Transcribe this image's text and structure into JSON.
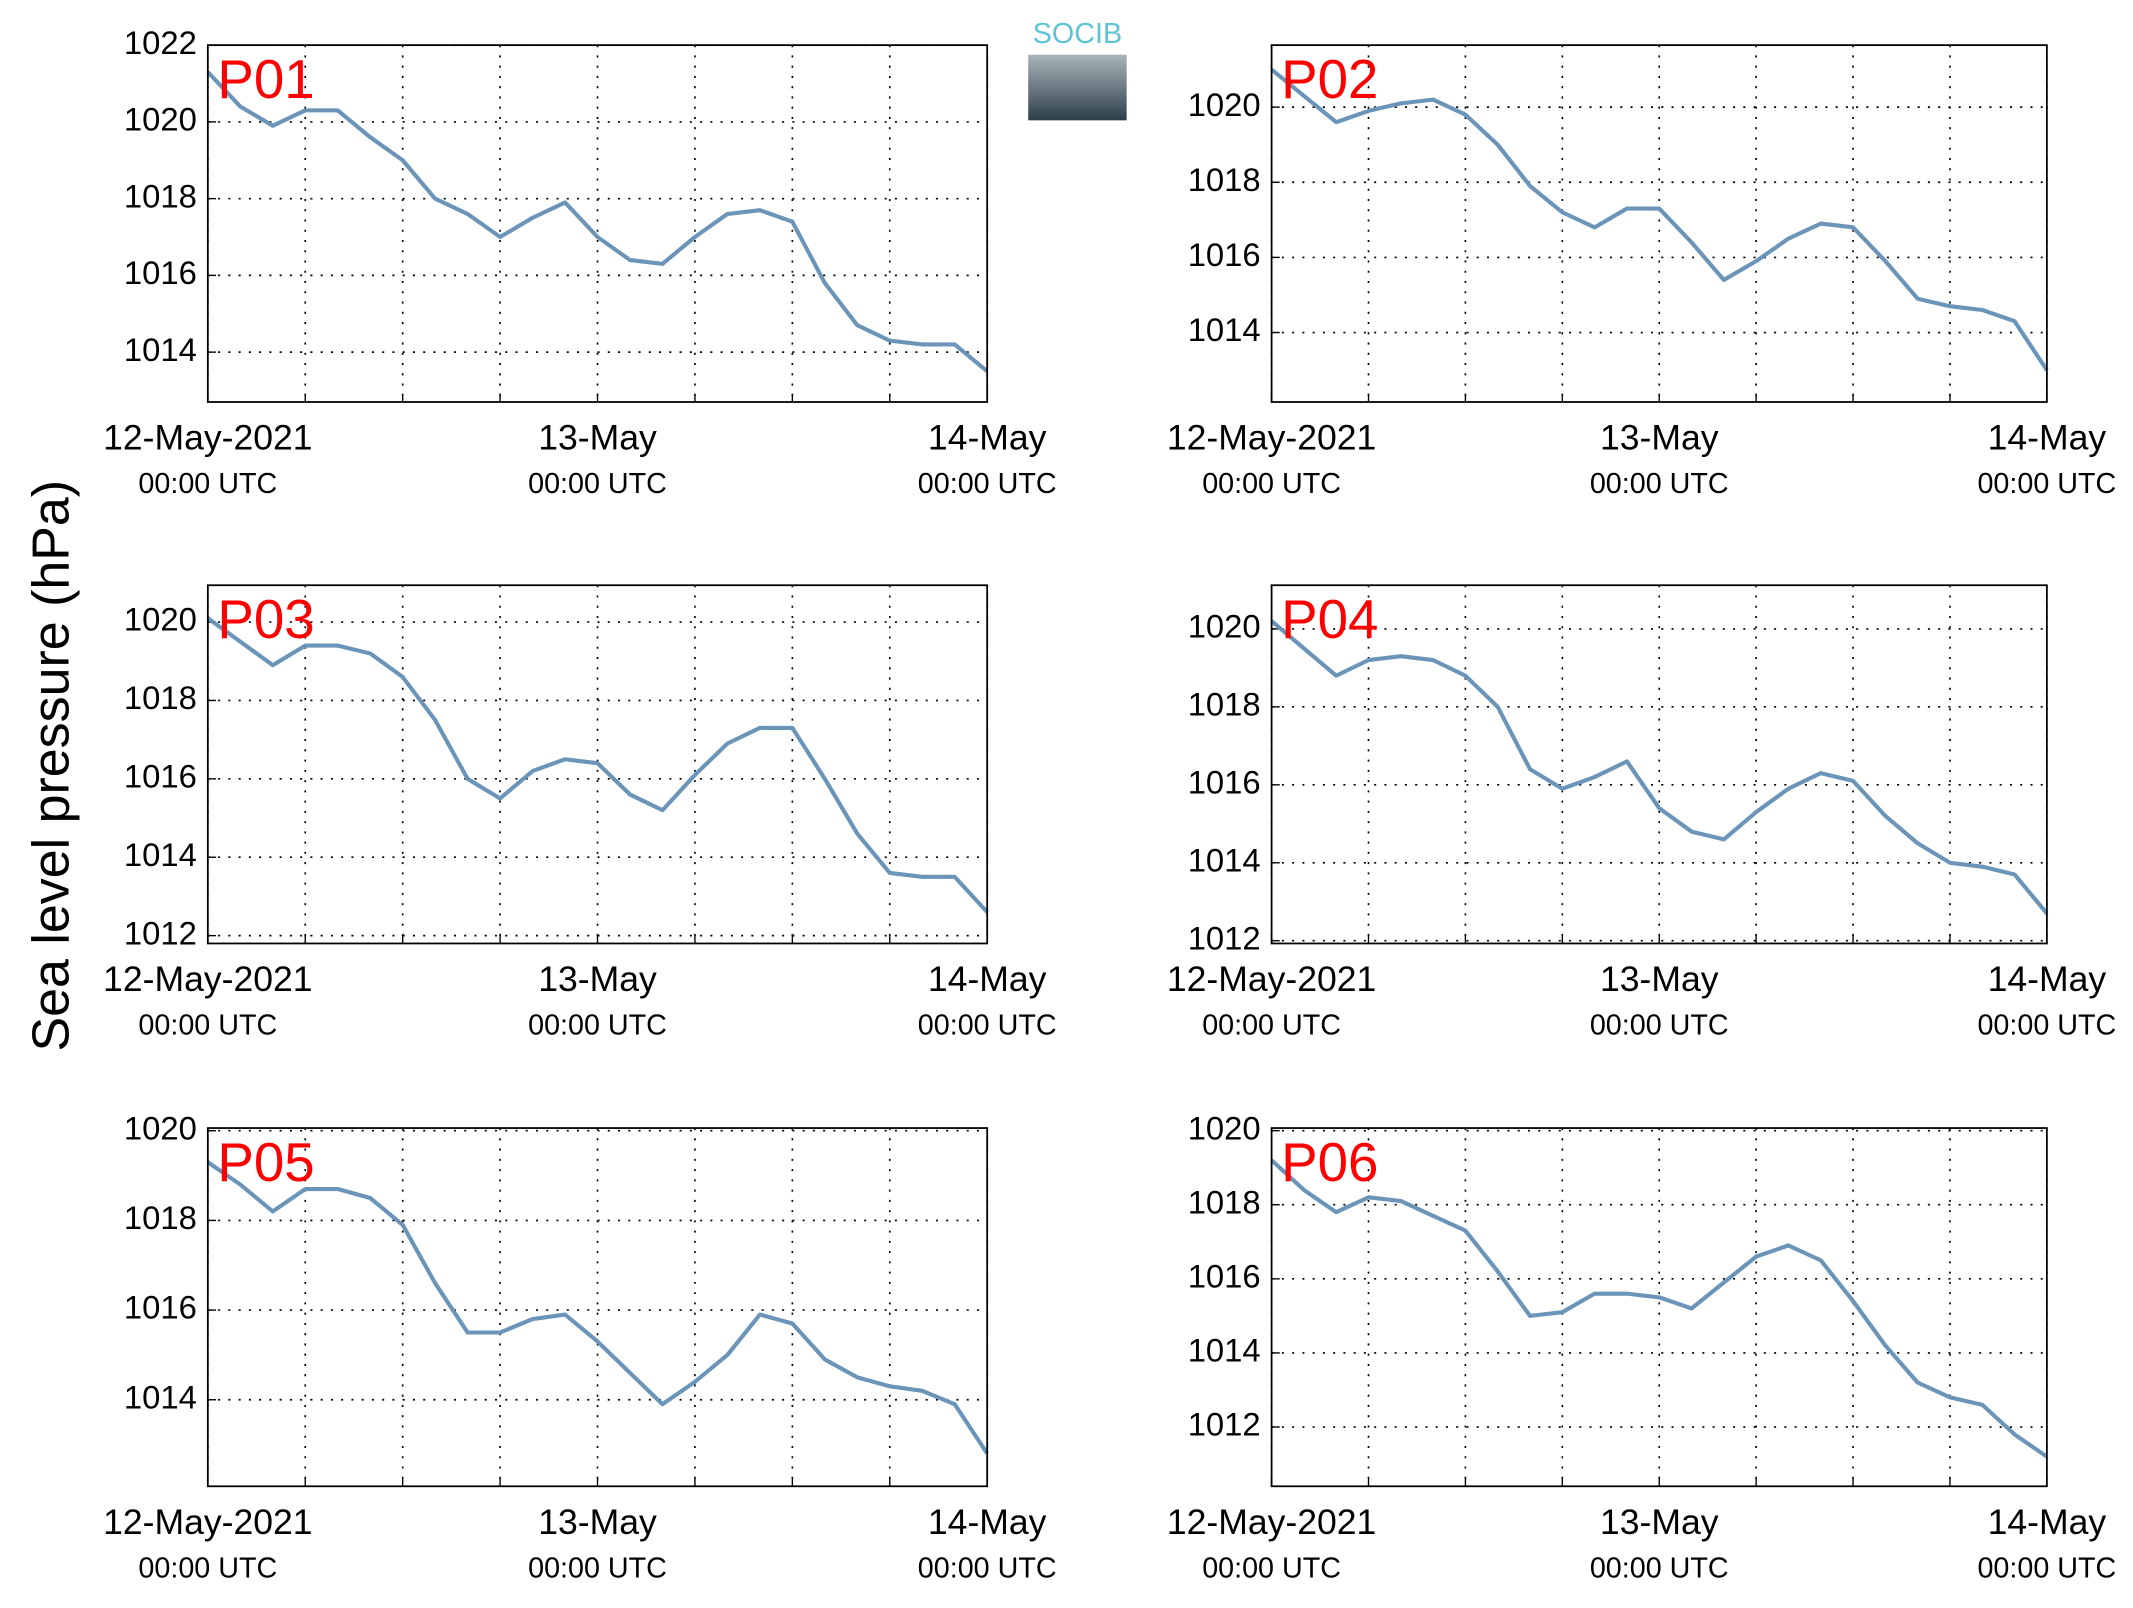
{
  "ylabel": "Sea level pressure (hPa)",
  "logo": "SOCIB",
  "chart_data": [
    {
      "type": "line",
      "title": "P01",
      "color": "#6b94b9",
      "xlim": [
        0,
        48
      ],
      "ylim": [
        1012.7,
        1022
      ],
      "x": [
        0,
        2,
        4,
        6,
        8,
        10,
        12,
        14,
        16,
        18,
        20,
        22,
        24,
        26,
        28,
        30,
        32,
        34,
        36,
        38,
        40,
        42,
        44,
        46,
        48
      ],
      "values": [
        1021.3,
        1020.4,
        1019.9,
        1020.3,
        1020.3,
        1019.6,
        1019.0,
        1018.0,
        1017.6,
        1017.0,
        1017.5,
        1017.9,
        1017.0,
        1016.4,
        1016.3,
        1017.0,
        1017.6,
        1017.7,
        1017.4,
        1015.8,
        1014.7,
        1014.3,
        1014.2,
        1014.2,
        1013.5
      ],
      "yticks": [
        1014,
        1016,
        1018,
        1020,
        1022
      ],
      "xticks": [
        {
          "value": 0,
          "label": "12-May-2021"
        },
        {
          "value": 24,
          "label": "13-May"
        },
        {
          "value": 48,
          "label": "14-May"
        }
      ],
      "xtick_sublabels": [
        "00:00 UTC",
        "00:00 UTC",
        "00:00 UTC"
      ],
      "xgrid": [
        0,
        6,
        12,
        18,
        24,
        30,
        36,
        42,
        48
      ],
      "grid": true
    },
    {
      "type": "line",
      "title": "P02",
      "color": "#6b94b9",
      "xlim": [
        0,
        48
      ],
      "ylim": [
        1012.15,
        1021.65
      ],
      "x": [
        0,
        2,
        4,
        6,
        8,
        10,
        12,
        14,
        16,
        18,
        20,
        22,
        24,
        26,
        28,
        30,
        32,
        34,
        36,
        38,
        40,
        42,
        44,
        46,
        48
      ],
      "values": [
        1021.0,
        1020.3,
        1019.6,
        1019.9,
        1020.1,
        1020.2,
        1019.8,
        1019.0,
        1017.9,
        1017.2,
        1016.8,
        1017.3,
        1017.3,
        1016.4,
        1015.4,
        1015.9,
        1016.5,
        1016.9,
        1016.8,
        1015.9,
        1014.9,
        1014.7,
        1014.6,
        1014.3,
        1013.0
      ],
      "yticks": [
        1014,
        1016,
        1018,
        1020
      ],
      "xticks": [
        {
          "value": 0,
          "label": "12-May-2021"
        },
        {
          "value": 24,
          "label": "13-May"
        },
        {
          "value": 48,
          "label": "14-May"
        }
      ],
      "xtick_sublabels": [
        "00:00 UTC",
        "00:00 UTC",
        "00:00 UTC"
      ],
      "xgrid": [
        0,
        6,
        12,
        18,
        24,
        30,
        36,
        42,
        48
      ],
      "grid": true
    },
    {
      "type": "line",
      "title": "P03",
      "color": "#6b94b9",
      "xlim": [
        0,
        48
      ],
      "ylim": [
        1011.8,
        1020.94
      ],
      "x": [
        0,
        2,
        4,
        6,
        8,
        10,
        12,
        14,
        16,
        18,
        20,
        22,
        24,
        26,
        28,
        30,
        32,
        34,
        36,
        38,
        40,
        42,
        44,
        46,
        48
      ],
      "values": [
        1020.1,
        1019.5,
        1018.9,
        1019.4,
        1019.4,
        1019.2,
        1018.6,
        1017.5,
        1016.0,
        1015.5,
        1016.2,
        1016.5,
        1016.4,
        1015.6,
        1015.2,
        1016.1,
        1016.9,
        1017.3,
        1017.3,
        1016.0,
        1014.6,
        1013.6,
        1013.5,
        1013.5,
        1012.6
      ],
      "yticks": [
        1012,
        1014,
        1016,
        1018,
        1020
      ],
      "xticks": [
        {
          "value": 0,
          "label": "12-May-2021"
        },
        {
          "value": 24,
          "label": "13-May"
        },
        {
          "value": 48,
          "label": "14-May"
        }
      ],
      "xtick_sublabels": [
        "00:00 UTC",
        "00:00 UTC",
        "00:00 UTC"
      ],
      "xgrid": [
        0,
        6,
        12,
        18,
        24,
        30,
        36,
        42,
        48
      ],
      "grid": true
    },
    {
      "type": "line",
      "title": "P04",
      "color": "#6b94b9",
      "xlim": [
        0,
        48
      ],
      "ylim": [
        1011.93,
        1021.12
      ],
      "x": [
        0,
        2,
        4,
        6,
        8,
        10,
        12,
        14,
        16,
        18,
        20,
        22,
        24,
        26,
        28,
        30,
        32,
        34,
        36,
        38,
        40,
        42,
        44,
        46,
        48
      ],
      "values": [
        1020.2,
        1019.5,
        1018.8,
        1019.2,
        1019.3,
        1019.2,
        1018.8,
        1018.0,
        1016.4,
        1015.9,
        1016.2,
        1016.6,
        1015.4,
        1014.8,
        1014.6,
        1015.3,
        1015.9,
        1016.3,
        1016.1,
        1015.2,
        1014.5,
        1014.0,
        1013.9,
        1013.7,
        1012.7
      ],
      "yticks": [
        1012,
        1014,
        1016,
        1018,
        1020
      ],
      "xticks": [
        {
          "value": 0,
          "label": "12-May-2021"
        },
        {
          "value": 24,
          "label": "13-May"
        },
        {
          "value": 48,
          "label": "14-May"
        }
      ],
      "xtick_sublabels": [
        "00:00 UTC",
        "00:00 UTC",
        "00:00 UTC"
      ],
      "xgrid": [
        0,
        6,
        12,
        18,
        24,
        30,
        36,
        42,
        48
      ],
      "grid": true
    },
    {
      "type": "line",
      "title": "P05",
      "color": "#6b94b9",
      "xlim": [
        0,
        48
      ],
      "ylim": [
        1012.07,
        1020.06
      ],
      "x": [
        0,
        2,
        4,
        6,
        8,
        10,
        12,
        14,
        16,
        18,
        20,
        22,
        24,
        26,
        28,
        30,
        32,
        34,
        36,
        38,
        40,
        42,
        44,
        46,
        48
      ],
      "values": [
        1019.3,
        1018.8,
        1018.2,
        1018.7,
        1018.7,
        1018.5,
        1017.9,
        1016.6,
        1015.5,
        1015.5,
        1015.8,
        1015.9,
        1015.3,
        1014.6,
        1013.9,
        1014.4,
        1015.0,
        1015.9,
        1015.7,
        1014.9,
        1014.5,
        1014.3,
        1014.2,
        1013.9,
        1012.8
      ],
      "yticks": [
        1014,
        1016,
        1018,
        1020
      ],
      "xticks": [
        {
          "value": 0,
          "label": "12-May-2021"
        },
        {
          "value": 24,
          "label": "13-May"
        },
        {
          "value": 48,
          "label": "14-May"
        }
      ],
      "xtick_sublabels": [
        "00:00 UTC",
        "00:00 UTC",
        "00:00 UTC"
      ],
      "xgrid": [
        0,
        6,
        12,
        18,
        24,
        30,
        36,
        42,
        48
      ],
      "grid": true
    },
    {
      "type": "line",
      "title": "P06",
      "color": "#6b94b9",
      "xlim": [
        0,
        48
      ],
      "ylim": [
        1010.4,
        1020.07
      ],
      "x": [
        0,
        2,
        4,
        6,
        8,
        10,
        12,
        14,
        16,
        18,
        20,
        22,
        24,
        26,
        28,
        30,
        32,
        34,
        36,
        38,
        40,
        42,
        44,
        46,
        48
      ],
      "values": [
        1019.2,
        1018.4,
        1017.8,
        1018.2,
        1018.1,
        1017.7,
        1017.3,
        1016.2,
        1015.0,
        1015.1,
        1015.6,
        1015.6,
        1015.5,
        1015.2,
        1015.9,
        1016.6,
        1016.9,
        1016.5,
        1015.4,
        1014.2,
        1013.2,
        1012.8,
        1012.6,
        1011.8,
        1011.2
      ],
      "yticks": [
        1012,
        1014,
        1016,
        1018,
        1020
      ],
      "xticks": [
        {
          "value": 0,
          "label": "12-May-2021"
        },
        {
          "value": 24,
          "label": "13-May"
        },
        {
          "value": 48,
          "label": "14-May"
        }
      ],
      "xtick_sublabels": [
        "00:00 UTC",
        "00:00 UTC",
        "00:00 UTC"
      ],
      "xgrid": [
        0,
        6,
        12,
        18,
        24,
        30,
        36,
        42,
        48
      ],
      "grid": true
    }
  ]
}
